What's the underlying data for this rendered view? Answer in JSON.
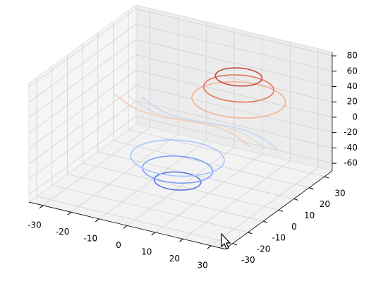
{
  "chart_data": {
    "type": "contour3d",
    "xlim": [
      -35,
      35
    ],
    "ylim": [
      -35,
      35
    ],
    "zlim": [
      -70,
      85
    ],
    "xticks": [
      -30,
      -20,
      -10,
      0,
      10,
      20,
      30
    ],
    "yticks": [
      -30,
      -20,
      -10,
      0,
      10,
      20,
      30
    ],
    "zticks": [
      -60,
      -40,
      -20,
      0,
      20,
      40,
      60,
      80
    ],
    "grid": true,
    "levels": [
      -60,
      -45,
      -30,
      -15,
      0,
      15,
      30,
      45,
      60
    ],
    "colors": [
      "#5a78e4",
      "#7b9ff9",
      "#a9c6fd",
      "#c5d6f2",
      "#dddcdc",
      "#f2cbb7",
      "#f5b195",
      "#e7745b",
      "#c8463a"
    ]
  }
}
